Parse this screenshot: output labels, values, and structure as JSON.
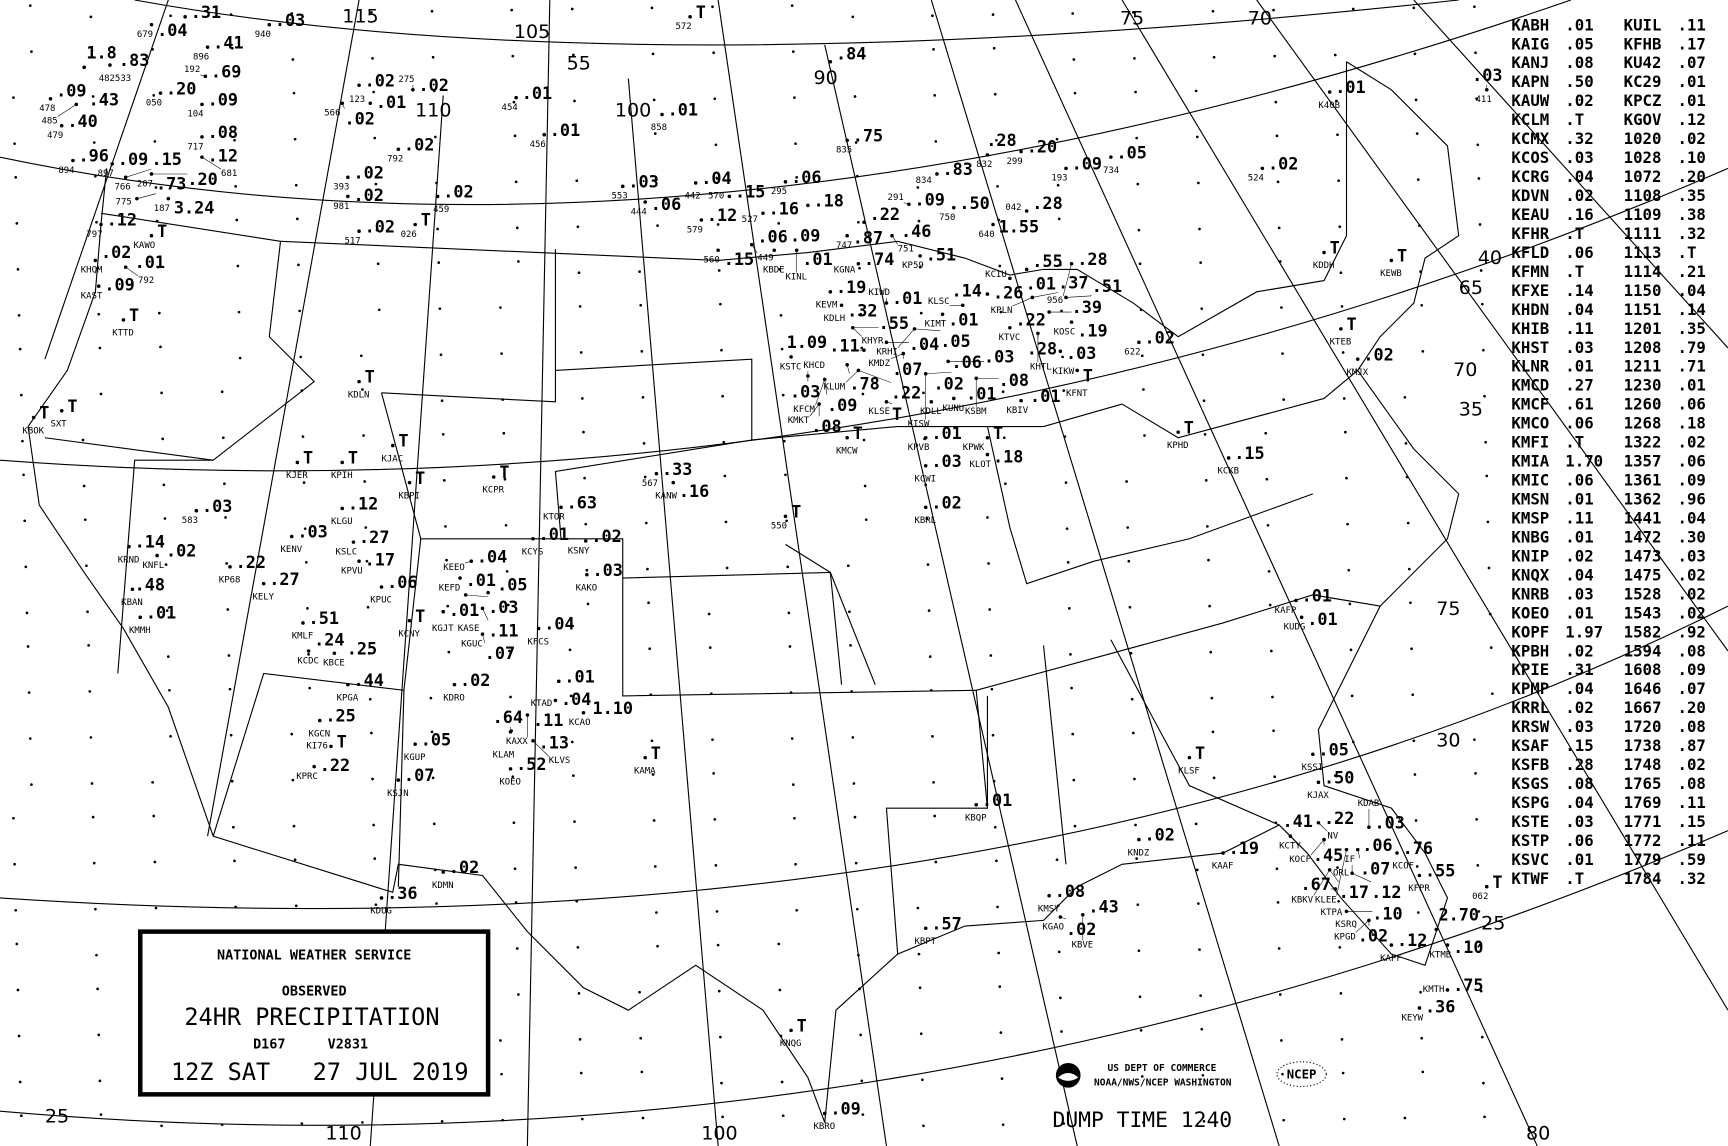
{
  "title_box": {
    "agency": "NATIONAL WEATHER SERVICE",
    "observed": "OBSERVED",
    "product": "24HR PRECIPITATION",
    "code1": "D167",
    "code2": "V2831",
    "valid": "12Z SAT   27 JUL 2019"
  },
  "credits": {
    "line1": "US DEPT OF COMMERCE",
    "line2": "NOAA/NWS/NCEP WASHINGTON",
    "ncep_logo": "NCEP",
    "dump_time": "DUMP TIME 1240"
  },
  "graticule_labels": [
    "115",
    "105",
    "55",
    "110",
    "100",
    "90",
    "75",
    "70",
    "40",
    "65",
    "35",
    "70",
    "75",
    "30",
    "25",
    "25",
    "110",
    "100",
    "80"
  ],
  "station_table": {
    "rows": [
      [
        "KABH",
        ".01",
        "KUIL",
        ".11"
      ],
      [
        "KAIG",
        ".05",
        "KFHB",
        ".17"
      ],
      [
        "KANJ",
        ".08",
        "KU42",
        ".07"
      ],
      [
        "KAPN",
        ".50",
        "KC29",
        ".01"
      ],
      [
        "KAUW",
        ".02",
        "KPCZ",
        ".01"
      ],
      [
        "KCLM",
        ".T",
        "KGOV",
        ".12"
      ],
      [
        "KCMX",
        ".32",
        "1020",
        ".02"
      ],
      [
        "KCOS",
        ".03",
        "1028",
        ".10"
      ],
      [
        "KCRG",
        ".04",
        "1072",
        ".20"
      ],
      [
        "KDVN",
        ".02",
        "1108",
        ".35"
      ],
      [
        "KEAU",
        ".16",
        "1109",
        ".38"
      ],
      [
        "KFHR",
        ".T",
        "1111",
        ".32"
      ],
      [
        "KFLD",
        ".06",
        "1113",
        ".T"
      ],
      [
        "KFMN",
        ".T",
        "1114",
        ".21"
      ],
      [
        "KFXE",
        ".14",
        "1150",
        ".04"
      ],
      [
        "KHDN",
        ".04",
        "1151",
        ".14"
      ],
      [
        "KHIB",
        ".11",
        "1201",
        ".35"
      ],
      [
        "KHST",
        ".03",
        "1208",
        ".79"
      ],
      [
        "KLNR",
        ".01",
        "1211",
        ".71"
      ],
      [
        "KMCD",
        ".27",
        "1230",
        ".01"
      ],
      [
        "KMCF",
        ".61",
        "1260",
        ".06"
      ],
      [
        "KMCO",
        ".06",
        "1268",
        ".18"
      ],
      [
        "KMFI",
        ".T",
        "1322",
        ".02"
      ],
      [
        "KMIA",
        "1.70",
        "1357",
        ".06"
      ],
      [
        "KMIC",
        ".06",
        "1361",
        ".09"
      ],
      [
        "KMSN",
        ".01",
        "1362",
        ".96"
      ],
      [
        "KMSP",
        ".11",
        "1441",
        ".04"
      ],
      [
        "KNBG",
        ".01",
        "1472",
        ".30"
      ],
      [
        "KNIP",
        ".02",
        "1473",
        ".03"
      ],
      [
        "KNQX",
        ".04",
        "1475",
        ".02"
      ],
      [
        "KNRB",
        ".03",
        "1528",
        ".02"
      ],
      [
        "KOEO",
        ".01",
        "1543",
        ".02"
      ],
      [
        "KOPF",
        "1.97",
        "1582",
        ".92"
      ],
      [
        "KPBH",
        ".02",
        "1594",
        ".08"
      ],
      [
        "KPIE",
        ".31",
        "1608",
        ".09"
      ],
      [
        "KPMP",
        ".04",
        "1646",
        ".07"
      ],
      [
        "KRRL",
        ".02",
        "1667",
        ".20"
      ],
      [
        "KRSW",
        ".03",
        "1720",
        ".08"
      ],
      [
        "KSAF",
        ".15",
        "1738",
        ".87"
      ],
      [
        "KSFB",
        ".28",
        "1748",
        ".02"
      ],
      [
        "KSGS",
        ".08",
        "1765",
        ".08"
      ],
      [
        "KSPG",
        ".04",
        "1769",
        ".11"
      ],
      [
        "KSTE",
        ".03",
        "1771",
        ".15"
      ],
      [
        "KSTP",
        ".06",
        "1772",
        ".11"
      ],
      [
        "KSVC",
        ".01",
        "1779",
        ".59"
      ],
      [
        "KTWF",
        ".T",
        "1784",
        ".32"
      ]
    ]
  },
  "stations": [
    {
      "id": "679",
      "v": ".04"
    },
    {
      "id": "",
      "v": ".31"
    },
    {
      "id": "896",
      "v": ".41"
    },
    {
      "id": "192",
      "v": ".69"
    },
    {
      "id": "104",
      "v": ".09"
    },
    {
      "id": "050",
      "v": ".20"
    },
    {
      "id": "717",
      "v": ".08"
    },
    {
      "id": "681",
      "v": ".12"
    },
    {
      "id": "775",
      "v": ".73"
    },
    {
      "id": "187",
      "v": "3.24"
    },
    {
      "id": "478",
      "v": ".09"
    },
    {
      "id": "485",
      "v": ".43"
    },
    {
      "id": "479",
      "v": ".40"
    },
    {
      "id": "894",
      "v": ".96"
    },
    {
      "id": "897",
      "v": ".09"
    },
    {
      "id": "766",
      "v": ".15"
    },
    {
      "id": "207",
      "v": ".20"
    },
    {
      "id": "",
      "v": "1.8"
    },
    {
      "id": "482533",
      "v": ".83"
    },
    {
      "id": "797",
      "v": ".12"
    },
    {
      "id": "KAWO",
      "v": "T"
    },
    {
      "id": "KHQM",
      "v": ".02"
    },
    {
      "id": "792",
      "v": ".01"
    },
    {
      "id": "KAST",
      "v": ".09"
    },
    {
      "id": "KTTD",
      "v": "T"
    },
    {
      "id": "KBOK",
      "v": "T"
    },
    {
      "id": "SXT",
      "v": "T"
    },
    {
      "id": "KRND",
      "v": ".14"
    },
    {
      "id": "KNFL",
      "v": ".02"
    },
    {
      "id": "KBAN",
      "v": ".48"
    },
    {
      "id": "KMMH",
      "v": ".01"
    },
    {
      "id": "583",
      "v": ".03"
    },
    {
      "id": "KP68",
      "v": ".22"
    },
    {
      "id": "KELY",
      "v": ".27"
    },
    {
      "id": "KENV",
      "v": ".03"
    },
    {
      "id": "KJER",
      "v": "T"
    },
    {
      "id": "KPIH",
      "v": "T"
    },
    {
      "id": "KDLN",
      "v": "T"
    },
    {
      "id": "KJAC",
      "v": "T"
    },
    {
      "id": "KBPI",
      "v": "T"
    },
    {
      "id": "KLGU",
      "v": ".12"
    },
    {
      "id": "KSLC",
      "v": ".27"
    },
    {
      "id": "KPVU",
      "v": ".17"
    },
    {
      "id": "KPUC",
      "v": ".06"
    },
    {
      "id": "KCNY",
      "v": "T"
    },
    {
      "id": "KMLF",
      "v": ".51"
    },
    {
      "id": "KCDC",
      "v": ".24"
    },
    {
      "id": "KBCE",
      "v": ".25"
    },
    {
      "id": "KPGA",
      "v": ".44"
    },
    {
      "id": "KGCN",
      "v": ".25"
    },
    {
      "id": "KI76",
      "v": "T"
    },
    {
      "id": "KPRC",
      "v": ".22"
    },
    {
      "id": "KGUP",
      "v": ".05"
    },
    {
      "id": "KSJN",
      "v": ".07"
    },
    {
      "id": "KDUG",
      "v": ".36"
    },
    {
      "id": "KDMN",
      "v": ".02"
    },
    {
      "id": "KEEO",
      "v": ".04"
    },
    {
      "id": "KEFD",
      "v": ".01"
    },
    {
      "id": "",
      "v": ".03"
    },
    {
      "id": "",
      "v": ".05"
    },
    {
      "id": "KGJT",
      "v": ".01"
    },
    {
      "id": "KASE",
      "v": ".11"
    },
    {
      "id": "KGUC",
      "v": ".07"
    },
    {
      "id": "KFCS",
      "v": ".04"
    },
    {
      "id": "KDRO",
      "v": ".02"
    },
    {
      "id": "",
      "v": ".01"
    },
    {
      "id": "KTAD",
      "v": ".04"
    },
    {
      "id": "KAXX",
      "v": ".11"
    },
    {
      "id": "KLAM",
      "v": ".64"
    },
    {
      "id": "KLVS",
      "v": ".13"
    },
    {
      "id": "KOEO",
      "v": ".52"
    },
    {
      "id": "KCPR",
      "v": "T"
    },
    {
      "id": "KTOR",
      "v": ".63"
    },
    {
      "id": "KCYS",
      "v": ".01"
    },
    {
      "id": "KSNY",
      "v": ".02"
    },
    {
      "id": "KAKO",
      "v": ".03"
    },
    {
      "id": "KCAO",
      "v": "1.10"
    },
    {
      "id": "KAMA",
      "v": "T"
    },
    {
      "id": "567",
      "v": ".33"
    },
    {
      "id": "KANW",
      "v": ".16"
    },
    {
      "id": "550",
      "v": "T"
    },
    {
      "id": "454",
      "v": ".01"
    },
    {
      "id": "456",
      "v": ".01"
    },
    {
      "id": "",
      "v": ".02"
    },
    {
      "id": "566",
      "v": ".02"
    },
    {
      "id": "123",
      "v": ".01"
    },
    {
      "id": "275",
      "v": ".02"
    },
    {
      "id": "792",
      "v": ".02"
    },
    {
      "id": "393",
      "v": ".02"
    },
    {
      "id": "981",
      "v": ".02"
    },
    {
      "id": "459",
      "v": ".02"
    },
    {
      "id": "517",
      "v": ".02"
    },
    {
      "id": "026",
      "v": "T"
    },
    {
      "id": "940",
      "v": ".03"
    },
    {
      "id": "572",
      "v": "T"
    },
    {
      "id": "858",
      "v": ".01"
    },
    {
      "id": "553",
      "v": ".03"
    },
    {
      "id": "444",
      "v": ".06"
    },
    {
      "id": "442",
      "v": ".04"
    },
    {
      "id": "",
      "v": ".84"
    },
    {
      "id": "835",
      "v": ".75"
    },
    {
      "id": "834",
      "v": ".83"
    },
    {
      "id": "832",
      "v": ".28"
    },
    {
      "id": "299",
      "v": ".20"
    },
    {
      "id": "193",
      "v": ".09"
    },
    {
      "id": "734",
      "v": ".05"
    },
    {
      "id": "K40B",
      "v": ".01"
    },
    {
      "id": "411",
      "v": ".03"
    },
    {
      "id": "524",
      "v": ".02"
    },
    {
      "id": "570",
      "v": ".15"
    },
    {
      "id": "579",
      "v": ".12"
    },
    {
      "id": "295",
      "v": ".06"
    },
    {
      "id": "527",
      "v": ".16"
    },
    {
      "id": "",
      "v": ".18"
    },
    {
      "id": "560",
      "v": ".15"
    },
    {
      "id": "449",
      "v": ".06"
    },
    {
      "id": "KBDE",
      "v": ".09"
    },
    {
      "id": "KINL",
      "v": ".01"
    },
    {
      "id": "747",
      "v": ".87"
    },
    {
      "id": "",
      "v": ".22"
    },
    {
      "id": "751",
      "v": ".46"
    },
    {
      "id": "291",
      "v": ".09"
    },
    {
      "id": "750",
      "v": ".50"
    },
    {
      "id": "640",
      "v": "1.55"
    },
    {
      "id": "042",
      "v": ".28"
    },
    {
      "id": "KGNA",
      "v": ".74"
    },
    {
      "id": "KP59",
      "v": ".51"
    },
    {
      "id": "KEVM",
      "v": ".19"
    },
    {
      "id": "KDLH",
      "v": ".32"
    },
    {
      "id": "KIWD",
      "v": ".01"
    },
    {
      "id": "KIMT",
      "v": ".01"
    },
    {
      "id": "KLSC",
      "v": ".14"
    },
    {
      "id": "",
      "v": ".26"
    },
    {
      "id": "KCIU",
      "v": ".01"
    },
    {
      "id": "",
      "v": ".55"
    },
    {
      "id": "956",
      "v": ".28"
    },
    {
      "id": "KPLN",
      "v": ".37"
    },
    {
      "id": "",
      "v": ".39"
    },
    {
      "id": "",
      "v": ".51"
    },
    {
      "id": "KOSC",
      "v": ".19"
    },
    {
      "id": "KTVC",
      "v": ".22"
    },
    {
      "id": "KHTL",
      "v": ".28"
    },
    {
      "id": "KIKW",
      "v": ".03"
    },
    {
      "id": "KFNT",
      "v": "T"
    },
    {
      "id": "622",
      "v": ".02"
    },
    {
      "id": "KHYR",
      "v": ".55"
    },
    {
      "id": "",
      "v": ".04"
    },
    {
      "id": "KRHI",
      "v": ".05"
    },
    {
      "id": "KMDZ",
      "v": ".07"
    },
    {
      "id": "",
      "v": ".11"
    },
    {
      "id": "",
      "v": ".78"
    },
    {
      "id": "KLUM",
      "v": ".22"
    },
    {
      "id": "KSTC",
      "v": "1.09"
    },
    {
      "id": "KHCD",
      "v": ".03"
    },
    {
      "id": "KFCM",
      "v": ".09"
    },
    {
      "id": "KMKT",
      "v": ".08"
    },
    {
      "id": "KLSE",
      "v": "T"
    },
    {
      "id": "KDLL",
      "v": ".02"
    },
    {
      "id": "KUNU",
      "v": ".01"
    },
    {
      "id": "KISW",
      "v": ".06"
    },
    {
      "id": "",
      "v": ".03"
    },
    {
      "id": "KSBM",
      "v": ".08"
    },
    {
      "id": "KBIV",
      "v": ".01"
    },
    {
      "id": "KMCW",
      "v": "T"
    },
    {
      "id": "KPVB",
      "v": ".01"
    },
    {
      "id": "KPWK",
      "v": "T"
    },
    {
      "id": "KLOT",
      "v": ".18"
    },
    {
      "id": "KCWI",
      "v": ".03"
    },
    {
      "id": "KBRL",
      "v": ".02"
    },
    {
      "id": "KPHD",
      "v": "T"
    },
    {
      "id": "KCKB",
      "v": ".15"
    },
    {
      "id": "KDDH",
      "v": "T"
    },
    {
      "id": "KEWB",
      "v": "T"
    },
    {
      "id": "KTEB",
      "v": "T"
    },
    {
      "id": "KMJX",
      "v": ".02"
    },
    {
      "id": "KAFP",
      "v": ".01"
    },
    {
      "id": "KUDG",
      "v": ".01"
    },
    {
      "id": "KLSF",
      "v": "T"
    },
    {
      "id": "KSSI",
      "v": ".05"
    },
    {
      "id": "KJAX",
      "v": ".50"
    },
    {
      "id": "KBQP",
      "v": ".01"
    },
    {
      "id": "KNDZ",
      "v": ".02"
    },
    {
      "id": "KAAF",
      "v": ".19"
    },
    {
      "id": "KMSY",
      "v": ".08"
    },
    {
      "id": "KGAO",
      "v": ".02"
    },
    {
      "id": "KBVE",
      "v": ".43"
    },
    {
      "id": "KBPT",
      "v": ".57"
    },
    {
      "id": "KNQG",
      "v": "T"
    },
    {
      "id": "KBRO",
      "v": ".09"
    },
    {
      "id": "KCTY",
      "v": ".41"
    },
    {
      "id": "NV",
      "v": ".22"
    },
    {
      "id": "KOCF",
      "v": ".45"
    },
    {
      "id": "KLEE",
      "v": ".06"
    },
    {
      "id": "ORL",
      "v": ".07"
    },
    {
      "id": "KDAB",
      "v": ".03"
    },
    {
      "id": "KCOF",
      "v": ".76"
    },
    {
      "id": "KBKV",
      "v": ".17"
    },
    {
      "id": "IF",
      "v": ".12"
    },
    {
      "id": "KTPA",
      "v": ".67"
    },
    {
      "id": "KSRQ",
      "v": ".10"
    },
    {
      "id": "KPGD",
      "v": ".02"
    },
    {
      "id": "KAPF",
      "v": ".12"
    },
    {
      "id": "KFPR",
      "v": ".55"
    },
    {
      "id": "",
      "v": "2.70"
    },
    {
      "id": "KTMB",
      "v": ".10"
    },
    {
      "id": "KMTH",
      "v": ".75"
    },
    {
      "id": "KEYW",
      "v": ".36"
    },
    {
      "id": "062",
      "v": "T"
    }
  ]
}
